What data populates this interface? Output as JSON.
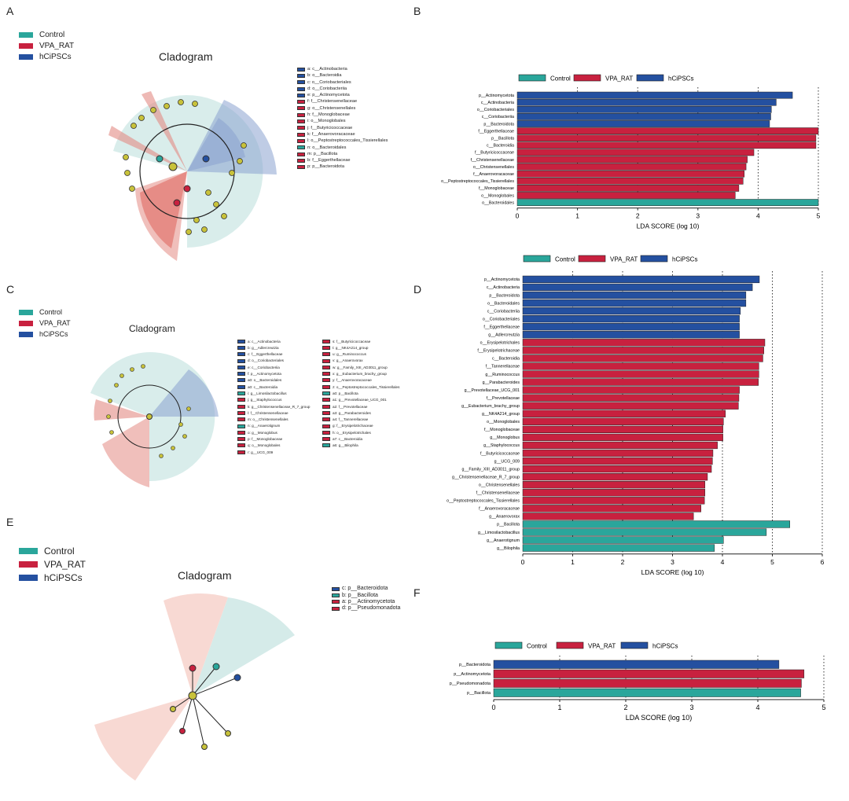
{
  "colors": {
    "Control": "#2aa69b",
    "VPA_RAT": "#c8213f",
    "hCiPSCs": "#2450a0"
  },
  "legend": [
    "Control",
    "VPA_RAT",
    "hCiPSCs"
  ],
  "panels": {
    "A": "A",
    "B": "B",
    "C": "C",
    "D": "D",
    "E": "E",
    "F": "F"
  },
  "cladogram_title": "Cladogram",
  "keysA": [
    {
      "t": "a: c__Actinobacteria",
      "g": "hCiPSCs"
    },
    {
      "t": "b: o__Bacteroidia",
      "g": "hCiPSCs"
    },
    {
      "t": "c: o__Coriobacteriales",
      "g": "hCiPSCs"
    },
    {
      "t": "d: o__Coriobacteriia",
      "g": "hCiPSCs"
    },
    {
      "t": "e: p__Actinomycetota",
      "g": "hCiPSCs"
    },
    {
      "t": "f: f__Christensenellaceae",
      "g": "VPA_RAT"
    },
    {
      "t": "g: o__Christensenellales",
      "g": "VPA_RAT"
    },
    {
      "t": "h: f__Monoglobaceae",
      "g": "VPA_RAT"
    },
    {
      "t": "i: o__Monoglobales",
      "g": "VPA_RAT"
    },
    {
      "t": "j: f__Butyricicoccaceae",
      "g": "VPA_RAT"
    },
    {
      "t": "k: f__Anaerovoracaceae",
      "g": "VPA_RAT"
    },
    {
      "t": "l: o__Peptostreptococcales_Tissierellales",
      "g": "VPA_RAT"
    },
    {
      "t": "n: o__Bacteroidales",
      "g": "Control"
    },
    {
      "t": "m: p__Bacillota",
      "g": "VPA_RAT"
    },
    {
      "t": "b: f__Eggerthellaceae",
      "g": "VPA_RAT"
    },
    {
      "t": "p: p__Bacteroidota",
      "g": "VPA_RAT"
    }
  ],
  "keysC1": [
    {
      "t": "a: c__Actinobacteria",
      "g": "hCiPSCs"
    },
    {
      "t": "b: g__Adlercreutzia",
      "g": "hCiPSCs"
    },
    {
      "t": "c: f__Eggerthellaceae",
      "g": "hCiPSCs"
    },
    {
      "t": "d: o__Coriobacteriales",
      "g": "hCiPSCs"
    },
    {
      "t": "e: c__Coriobacteriia",
      "g": "hCiPSCs"
    },
    {
      "t": "f: p__Actinomycetota",
      "g": "hCiPSCs"
    },
    {
      "t": "a0: o__Bacteroidales",
      "g": "hCiPSCs"
    },
    {
      "t": "a0: c__Bacteroidia",
      "g": "hCiPSCs"
    },
    {
      "t": "i: g__Limosilactobacillus",
      "g": "Control"
    },
    {
      "t": "j: g__Staphylococcus",
      "g": "VPA_RAT"
    },
    {
      "t": "k: g__Christensenellaceae_R_7_group",
      "g": "VPA_RAT"
    },
    {
      "t": "l: f__Christensenellaceae",
      "g": "VPA_RAT"
    },
    {
      "t": "m: o__Christensenellales",
      "g": "VPA_RAT"
    },
    {
      "t": "n: g__Anaerotignum",
      "g": "Control"
    },
    {
      "t": "o: g__Monoglobus",
      "g": "VPA_RAT"
    },
    {
      "t": "p: f__Monoglobaceae",
      "g": "VPA_RAT"
    },
    {
      "t": "q: o__Monoglobales",
      "g": "VPA_RAT"
    },
    {
      "t": "r: g__UCG_009",
      "g": "VPA_RAT"
    }
  ],
  "keysC2": [
    {
      "t": "s: f__Butyricicoccaceae",
      "g": "VPA_RAT"
    },
    {
      "t": "t: g__NK4A214_group",
      "g": "VPA_RAT"
    },
    {
      "t": "u: g__Ruminococcus",
      "g": "VPA_RAT"
    },
    {
      "t": "v: g__Anaerovorax",
      "g": "VPA_RAT"
    },
    {
      "t": "w: g__Family_XIII_AD3011_group",
      "g": "VPA_RAT"
    },
    {
      "t": "x: g__Eubacterium_brachy_group",
      "g": "VPA_RAT"
    },
    {
      "t": "y: f__Anaerovoracaceae",
      "g": "VPA_RAT"
    },
    {
      "t": "z: o__Peptostreptococcales_Tissierellales",
      "g": "VPA_RAT"
    },
    {
      "t": "a0: p__Bacillota",
      "g": "Control"
    },
    {
      "t": "a1: g__Prevotellaceae_UCG_001",
      "g": "VPA_RAT"
    },
    {
      "t": "a2: f__Prevotellaceae",
      "g": "VPA_RAT"
    },
    {
      "t": "a3: g__Parabacteroides",
      "g": "VPA_RAT"
    },
    {
      "t": "a4: f__Tannerellaceae",
      "g": "VPA_RAT"
    },
    {
      "t": "g: f__Erysipelotrichaceae",
      "g": "VPA_RAT"
    },
    {
      "t": "h: o__Erysipelotrichales",
      "g": "VPA_RAT"
    },
    {
      "t": "a7: c__Bacteroidia",
      "g": "VPA_RAT"
    },
    {
      "t": "a6: g__Bilophila",
      "g": "Control"
    }
  ],
  "keysE": [
    {
      "t": "c: p__Bacteroidota",
      "g": "hCiPSCs"
    },
    {
      "t": "b: p__Bacillota",
      "g": "Control"
    },
    {
      "t": "a: p__Actinomycetota",
      "g": "VPA_RAT"
    },
    {
      "t": "d: p__Pseudomonadota",
      "g": "VPA_RAT"
    }
  ],
  "chart_data": [
    {
      "type": "bar",
      "orientation": "horizontal",
      "panel": "B",
      "xlabel": "LDA SCORE (log 10)",
      "xlim": [
        0,
        5
      ],
      "xticks": [
        0,
        1,
        2,
        3,
        4,
        5
      ],
      "categories": [
        "p__Actinomycetota",
        "c__Actinobacteria",
        "o__Coriobacteriales",
        "c__Coriobacteriia",
        "p__Bacteroidota",
        "f__Eggerthellaceae",
        "p__Bacillota",
        "c__Bacteroidia",
        "f__Butyricicoccaceae",
        "f__Christensenellaceae",
        "o__Christensenellales",
        "f__Anaerovoracaceae",
        "o__Peptostreptococcales_Tissierellales",
        "f__Monoglobaceae",
        "o__Monoglobales",
        "o__Bacteroidales"
      ],
      "values": [
        4.57,
        4.3,
        4.22,
        4.21,
        4.19,
        5.0,
        4.96,
        4.96,
        3.93,
        3.82,
        3.8,
        3.77,
        3.75,
        3.68,
        3.62,
        5.0
      ],
      "groups": [
        "hCiPSCs",
        "hCiPSCs",
        "hCiPSCs",
        "hCiPSCs",
        "hCiPSCs",
        "VPA_RAT",
        "VPA_RAT",
        "VPA_RAT",
        "VPA_RAT",
        "VPA_RAT",
        "VPA_RAT",
        "VPA_RAT",
        "VPA_RAT",
        "VPA_RAT",
        "VPA_RAT",
        "Control"
      ]
    },
    {
      "type": "bar",
      "orientation": "horizontal",
      "panel": "D",
      "xlabel": "LDA SCORE (log 10)",
      "xlim": [
        0,
        6
      ],
      "xticks": [
        0,
        1,
        2,
        3,
        4,
        5,
        6
      ],
      "categories": [
        "p__Actinomycetota",
        "c__Actinobacteria",
        "p__Bacteroidota",
        "o__Bacteroidales",
        "c__Coriobacteriia",
        "o__Coriobacteriales",
        "f__Eggerthellaceae",
        "g__Adlercreutzia",
        "o__Erysipelotrichales",
        "f__Erysipelotrichaceae",
        "c__Bacteroidia",
        "f__Tannerellaceae",
        "g__Ruminococcus",
        "g__Parabacteroides",
        "g__Prevotellaceae_UCG_001",
        "f__Prevotellaceae",
        "g__Eubacterium_brachy_group",
        "g__NK4A214_group",
        "o__Monoglobales",
        "f__Monoglobaceae",
        "g__Monoglobus",
        "g__Staphylococcus",
        "f__Butyricicoccaceae",
        "g__UCG_009",
        "g__Family_XIII_AD3011_group",
        "g__Christensenellaceae_R_7_group",
        "o__Christensenellales",
        "f__Christensenellaceae",
        "o__Peptostreptococcales_Tissierellales",
        "f__Anaerovoracaceae",
        "g__Anaerovorax",
        "p__Bacillota",
        "g__Limosilactobacillus",
        "g__Anaerotignum",
        "g__Bilophila"
      ],
      "values": [
        4.74,
        4.6,
        4.47,
        4.47,
        4.36,
        4.34,
        4.34,
        4.34,
        4.85,
        4.83,
        4.81,
        4.73,
        4.73,
        4.72,
        4.34,
        4.33,
        4.32,
        4.06,
        4.02,
        4.01,
        4.01,
        3.9,
        3.81,
        3.8,
        3.78,
        3.7,
        3.65,
        3.65,
        3.64,
        3.57,
        3.42,
        5.35,
        4.88,
        4.02,
        3.84
      ],
      "groups": [
        "hCiPSCs",
        "hCiPSCs",
        "hCiPSCs",
        "hCiPSCs",
        "hCiPSCs",
        "hCiPSCs",
        "hCiPSCs",
        "hCiPSCs",
        "VPA_RAT",
        "VPA_RAT",
        "VPA_RAT",
        "VPA_RAT",
        "VPA_RAT",
        "VPA_RAT",
        "VPA_RAT",
        "VPA_RAT",
        "VPA_RAT",
        "VPA_RAT",
        "VPA_RAT",
        "VPA_RAT",
        "VPA_RAT",
        "VPA_RAT",
        "VPA_RAT",
        "VPA_RAT",
        "VPA_RAT",
        "VPA_RAT",
        "VPA_RAT",
        "VPA_RAT",
        "VPA_RAT",
        "VPA_RAT",
        "VPA_RAT",
        "Control",
        "Control",
        "Control",
        "Control"
      ]
    },
    {
      "type": "bar",
      "orientation": "horizontal",
      "panel": "F",
      "xlabel": "LDA SCORE (log 10)",
      "xlim": [
        0,
        5
      ],
      "xticks": [
        0,
        1,
        2,
        3,
        4,
        5
      ],
      "categories": [
        "p__Bacteroidota",
        "p__Actinomycetota",
        "p__Pseudomonadota",
        "p__Bacillota"
      ],
      "values": [
        4.32,
        4.7,
        4.66,
        4.65
      ],
      "groups": [
        "hCiPSCs",
        "VPA_RAT",
        "VPA_RAT",
        "Control"
      ]
    }
  ]
}
